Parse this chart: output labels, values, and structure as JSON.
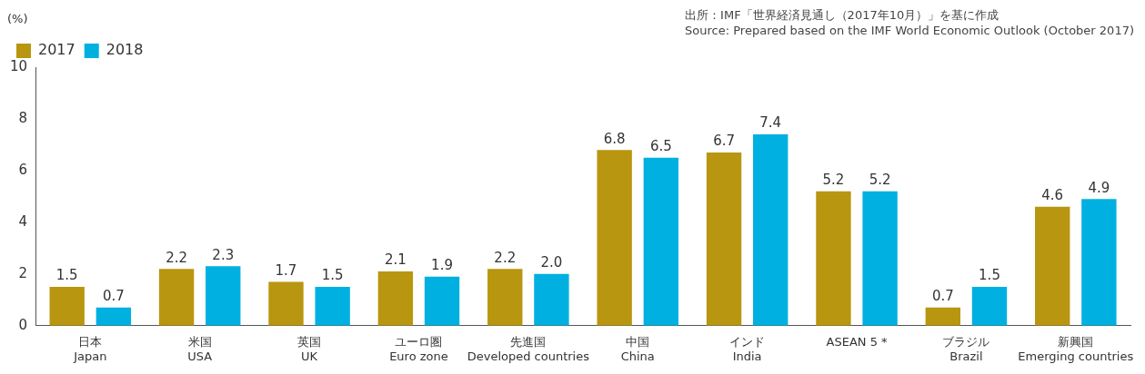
{
  "chart_data": {
    "type": "bar",
    "ylabel": "(%)",
    "annotations": [
      "出所：IMF「世界経済見通し（2017年10月）」を基に作成",
      "Source: Prepared based on the IMF World Economic Outlook (October 2017)"
    ],
    "categories": [
      "日本\nJapan",
      "米国\nUSA",
      "英国\nUK",
      "ユーロ圏\nEuro zone",
      "先進国\nDeveloped countries",
      "中国\nChina",
      "インド\nIndia",
      "ASEAN 5 *",
      "ブラジル\nBrazil",
      "新興国\nEmerging countries"
    ],
    "series": [
      {
        "name": "2017",
        "color": "#b8960f",
        "values": [
          1.5,
          2.2,
          1.7,
          2.1,
          2.2,
          6.8,
          6.7,
          5.2,
          0.7,
          4.6
        ],
        "value_labels": [
          "1.5",
          "2.2",
          "1.7",
          "2.1",
          "2.2",
          "6.8",
          "6.7",
          "5.2",
          "0.7",
          "4.6"
        ]
      },
      {
        "name": "2018",
        "color": "#00b0e0",
        "values": [
          0.7,
          2.3,
          1.5,
          1.9,
          2.0,
          6.5,
          7.4,
          5.2,
          1.5,
          4.9
        ],
        "value_labels": [
          "0.7",
          "2.3",
          "1.5",
          "1.9",
          "2.0",
          "6.5",
          "7.4",
          "5.2",
          "1.5",
          "4.9"
        ]
      }
    ],
    "ylim": [
      0,
      10
    ],
    "yticks": [
      0,
      2,
      4,
      6,
      8,
      10
    ],
    "grid": false,
    "legend": "top left"
  }
}
